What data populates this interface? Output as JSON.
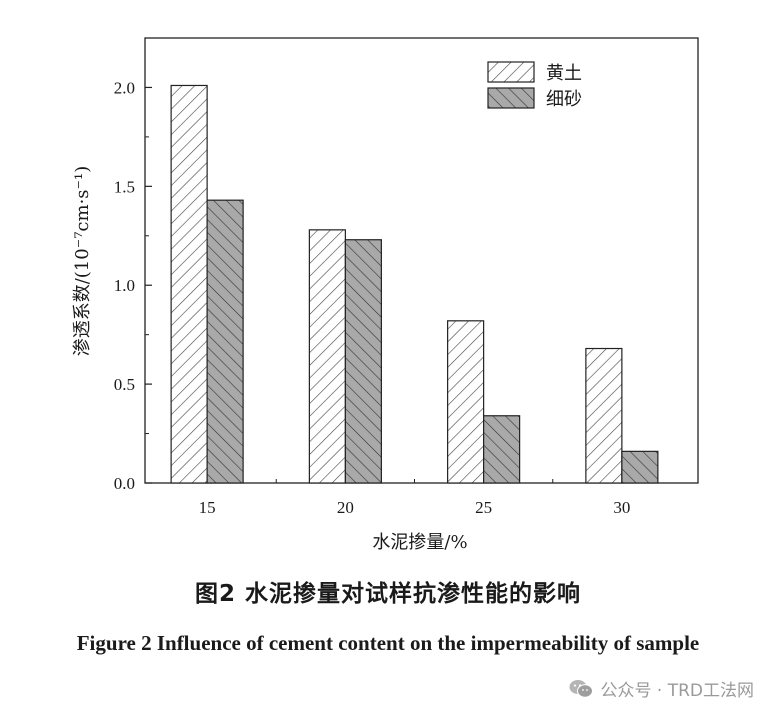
{
  "chart_data": {
    "type": "bar",
    "categories": [
      "15",
      "20",
      "25",
      "30"
    ],
    "series": [
      {
        "name": "黄土",
        "values": [
          2.01,
          1.28,
          0.82,
          0.68
        ],
        "fill": "#ffffff",
        "hatch": "forward-diagonal"
      },
      {
        "name": "细砂",
        "values": [
          1.43,
          1.23,
          0.34,
          0.16
        ],
        "fill": "#a9a9a9",
        "hatch": "backward-diagonal"
      }
    ],
    "xlabel": "水泥掺量/%",
    "ylabel": "渗透系数/(10⁻⁷cm·s⁻¹)",
    "ylim": [
      0,
      2.25
    ],
    "yticks": [
      "0.0",
      "0.5",
      "1.0",
      "1.5",
      "2.0"
    ],
    "legend_position": "top-right",
    "grid": false
  },
  "caption": {
    "cn": "图2   水泥掺量对试样抗渗性能的影响",
    "en": "Figure 2   Influence of cement content on the impermeability of sample"
  },
  "watermark": {
    "text": "公众号 · TRD工法网",
    "icon": "wechat-icon"
  }
}
